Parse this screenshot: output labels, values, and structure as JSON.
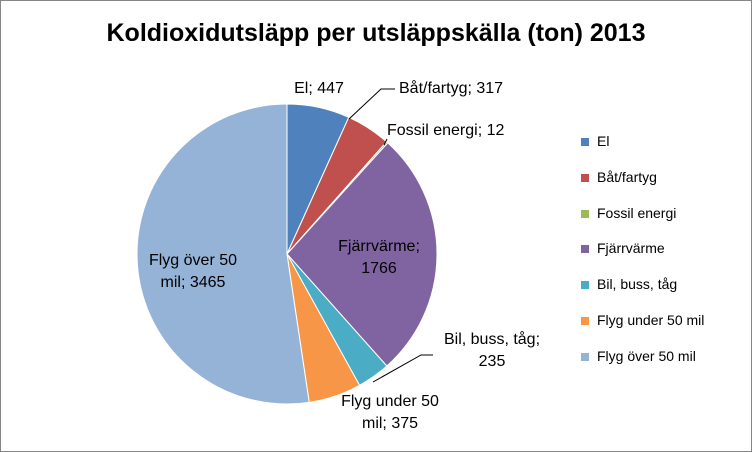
{
  "chart_data": {
    "type": "pie",
    "title": "Koldioxidutsläpp per utsläppskälla (ton) 2013",
    "categories": [
      "El",
      "Båt/fartyg",
      "Fossil energi",
      "Fjärrvärme",
      "Bil, buss, tåg",
      "Flyg under 50 mil",
      "Flyg över 50 mil"
    ],
    "values": [
      447,
      317,
      12,
      1766,
      235,
      375,
      3465
    ],
    "colors": [
      "#4F81BD",
      "#C0504D",
      "#9BBB59",
      "#8064A2",
      "#4BACC6",
      "#F79646",
      "#95B3D7"
    ],
    "data_labels": [
      [
        "El; 447"
      ],
      [
        "Båt/fartyg; 317"
      ],
      [
        "Fossil energi; 12"
      ],
      [
        "Fjärrvärme;",
        "1766"
      ],
      [
        "Bil, buss, tåg;",
        "235"
      ],
      [
        "Flyg under 50",
        "mil; 375"
      ],
      [
        "Flyg över 50",
        "mil; 3465"
      ]
    ],
    "legend": {
      "position": "right",
      "entries": [
        "El",
        "Båt/fartyg",
        "Fossil energi",
        "Fjärrvärme",
        "Bil, buss, tåg",
        "Flyg under 50 mil",
        "Flyg över 50 mil"
      ]
    }
  }
}
